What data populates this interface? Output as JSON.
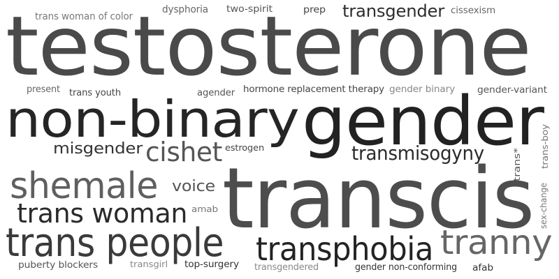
{
  "words": [
    {
      "text": "testosterone",
      "color": "#4a4a4a"
    },
    {
      "text": "gender",
      "color": "#222222"
    },
    {
      "text": "transcis",
      "color": "#4d4d4d"
    },
    {
      "text": "non-binary",
      "color": "#252525"
    },
    {
      "text": "trans people",
      "color": "#3a3a3a"
    },
    {
      "text": "shemale",
      "color": "#5f5f5f"
    },
    {
      "text": "transphobia",
      "color": "#232323"
    },
    {
      "text": "tranny",
      "color": "#666666"
    },
    {
      "text": "trans woman",
      "color": "#2a2a2a"
    },
    {
      "text": "cishet",
      "color": "#555555"
    },
    {
      "text": "transmisogyny",
      "color": "#2b2b2b"
    },
    {
      "text": "transgender",
      "color": "#2d2d2d"
    },
    {
      "text": "misgender",
      "color": "#333333"
    },
    {
      "text": "voice",
      "color": "#555555"
    },
    {
      "text": "trans woman of color",
      "color": "#7a7a7a"
    },
    {
      "text": "dysphoria",
      "color": "#666666"
    },
    {
      "text": "two-spirit",
      "color": "#555555"
    },
    {
      "text": "prep",
      "color": "#444444"
    },
    {
      "text": "cissexism",
      "color": "#666666"
    },
    {
      "text": "present",
      "color": "#666666"
    },
    {
      "text": "trans youth",
      "color": "#444444"
    },
    {
      "text": "agender",
      "color": "#555555"
    },
    {
      "text": "hormone replacement therapy",
      "color": "#444444"
    },
    {
      "text": "gender binary",
      "color": "#888888"
    },
    {
      "text": "gender-variant",
      "color": "#555555"
    },
    {
      "text": "estrogen",
      "color": "#444444"
    },
    {
      "text": "amab",
      "color": "#777777"
    },
    {
      "text": "puberty blockers",
      "color": "#555555"
    },
    {
      "text": "transgirl",
      "color": "#888888"
    },
    {
      "text": "top-surgery",
      "color": "#333333"
    },
    {
      "text": "transgendered",
      "color": "#888888"
    },
    {
      "text": "gender non-conforming",
      "color": "#333333"
    },
    {
      "text": "afab",
      "color": "#333333"
    },
    {
      "text": "trans*",
      "color": "#555555"
    },
    {
      "text": "trans-boy",
      "color": "#777777"
    },
    {
      "text": "sex-change",
      "color": "#777777"
    }
  ]
}
